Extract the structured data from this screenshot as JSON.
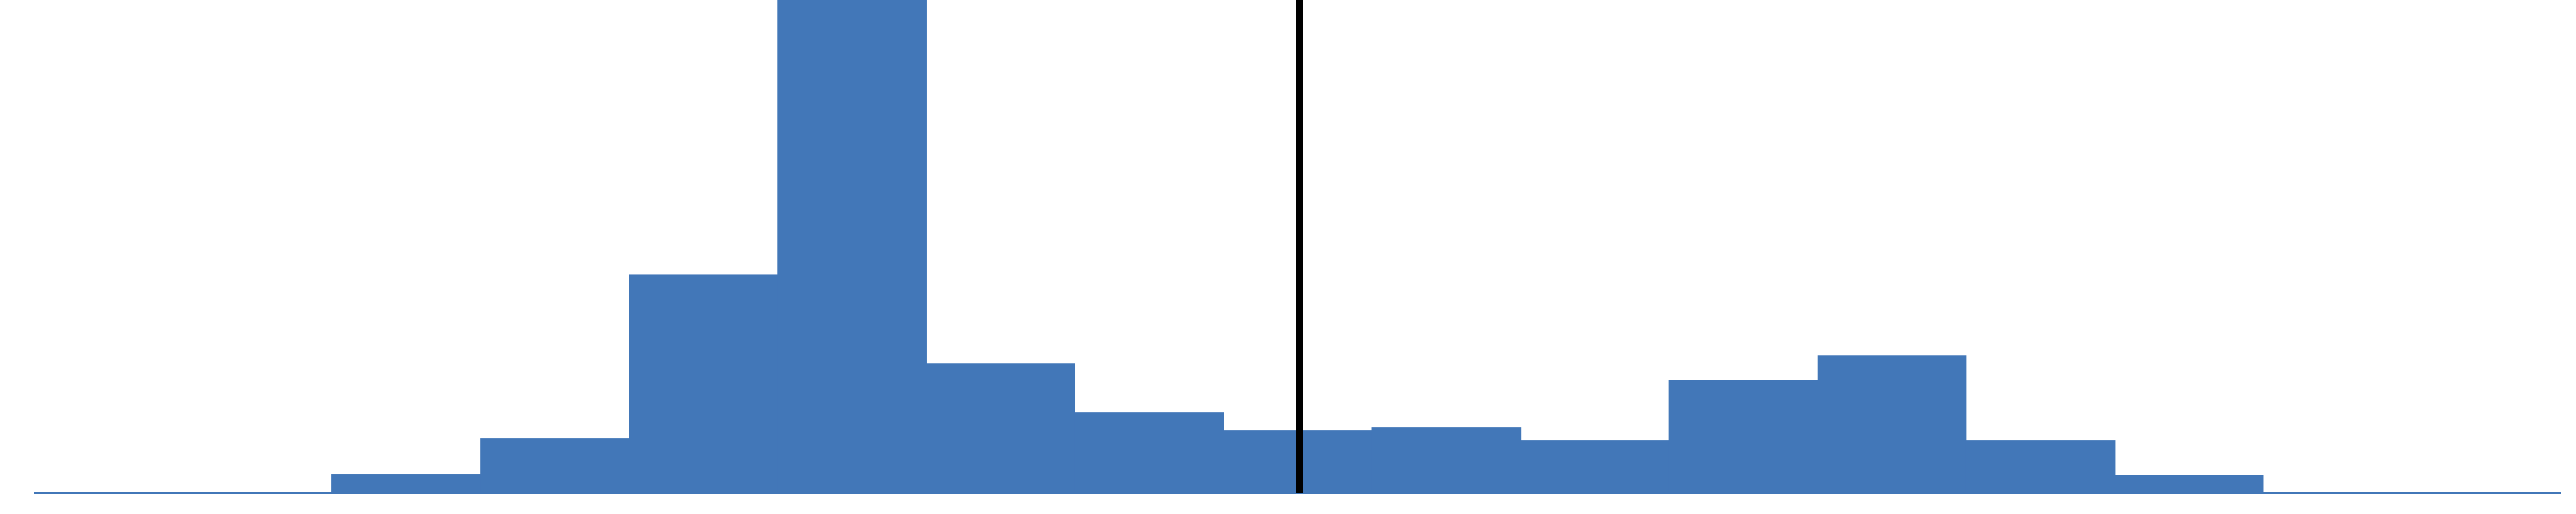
{
  "chart_data": {
    "type": "bar",
    "style": "histogram",
    "bin_count": 17,
    "values": [
      0.3,
      2,
      23,
      65,
      256,
      577,
      152,
      95,
      74,
      77,
      62,
      133,
      162,
      62,
      22,
      1,
      0.3
    ],
    "ylim": [
      0,
      577
    ],
    "grid": false,
    "legend": "none",
    "reference_line": {
      "position_bins": 8.5,
      "color": "#000000"
    },
    "colors": {
      "bar": "#4277b8",
      "baseline": "#4277b8",
      "reference_line": "#000000",
      "background": "#ffffff"
    }
  }
}
